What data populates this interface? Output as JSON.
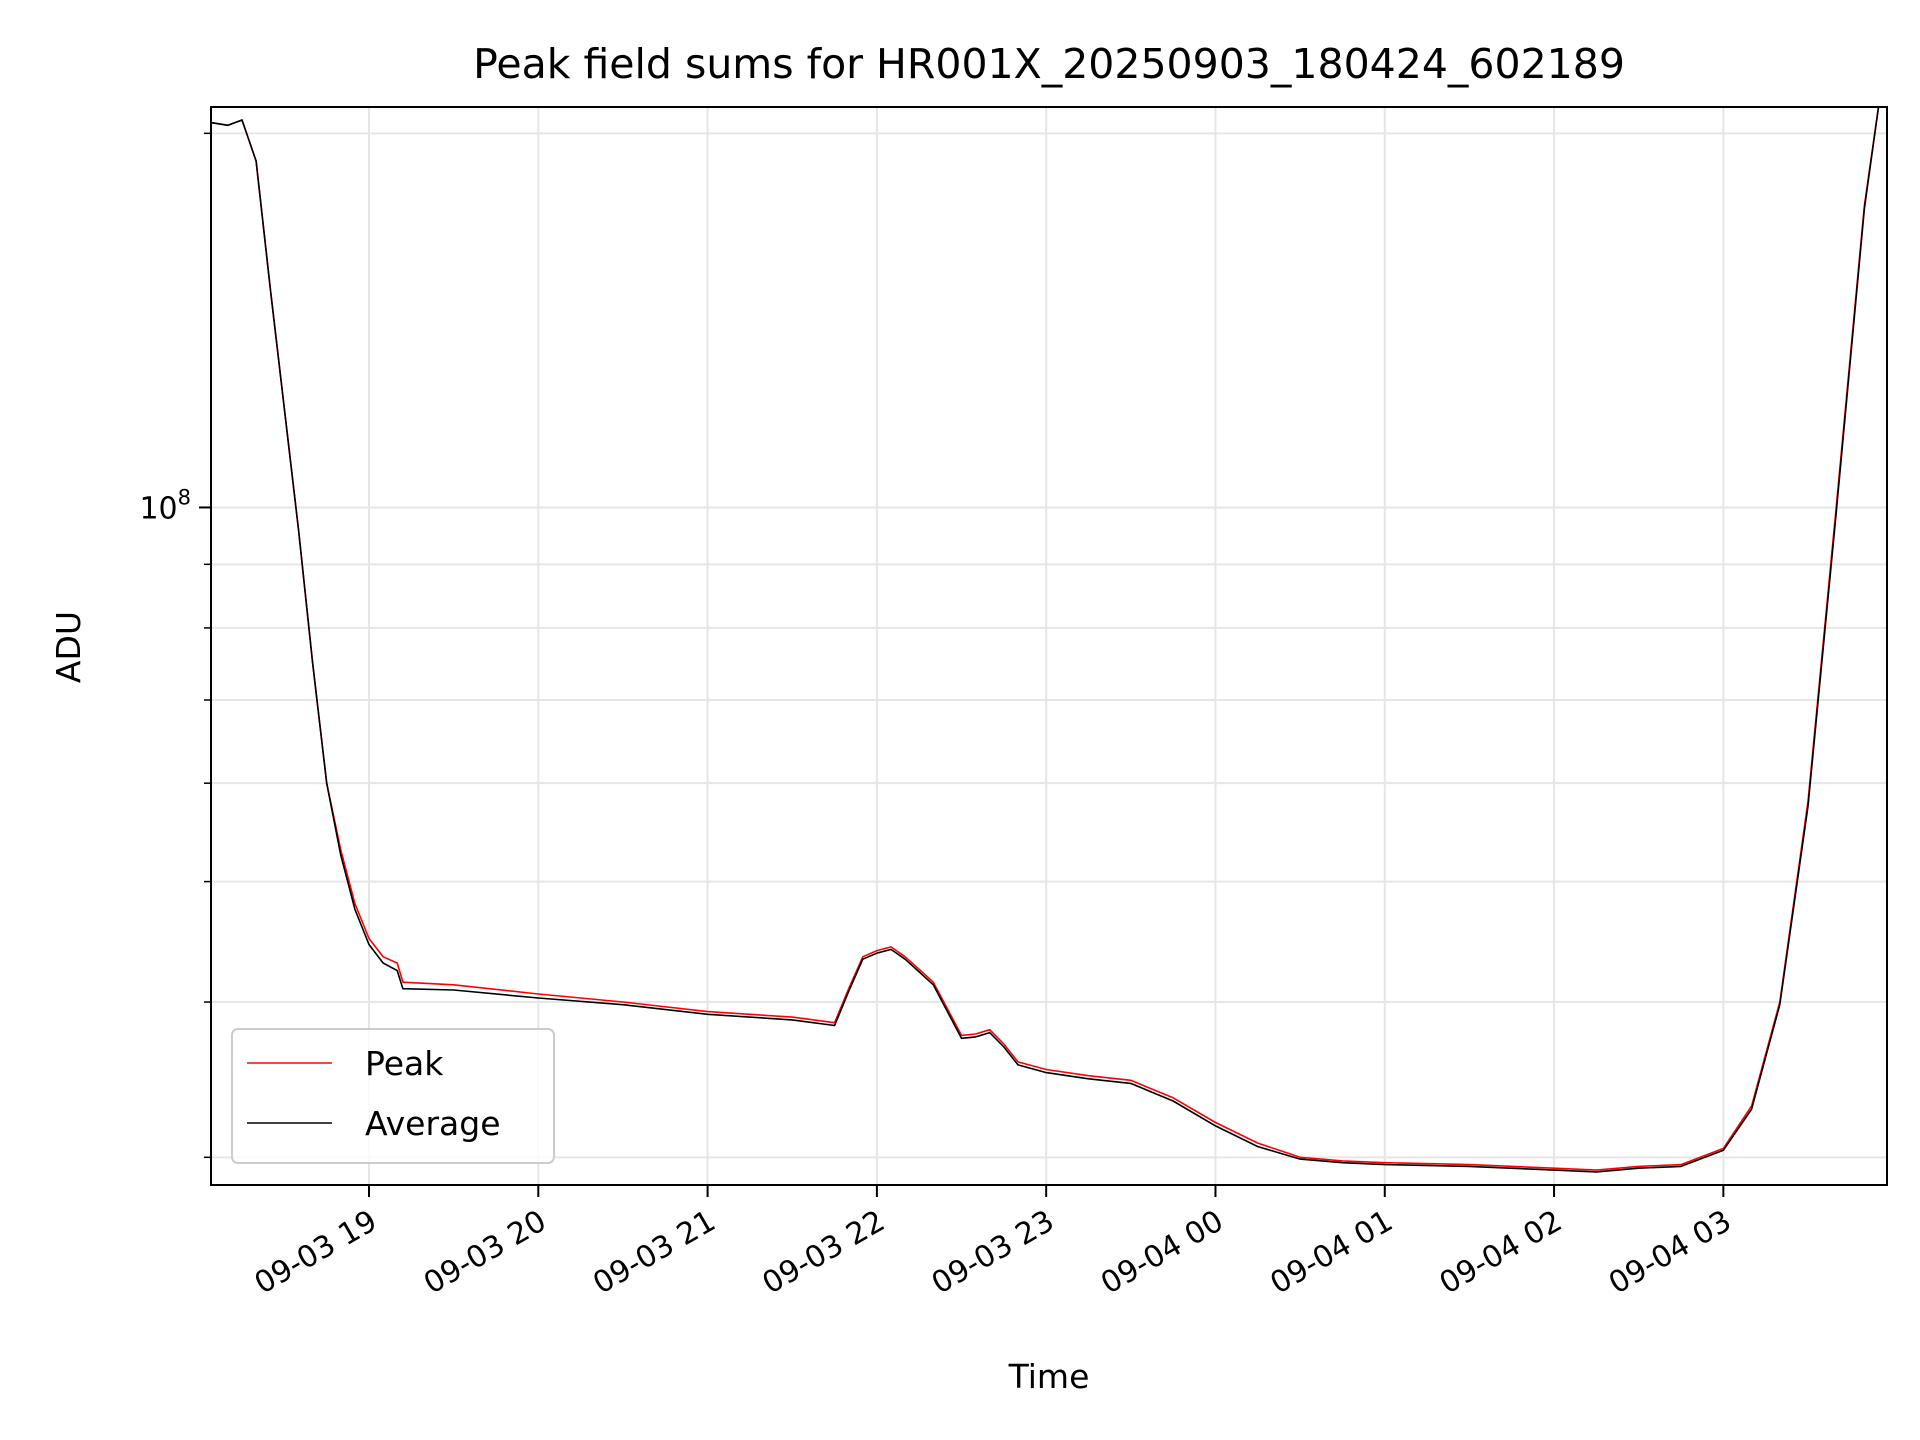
{
  "chart_data": {
    "type": "line",
    "title": "Peak field sums for HR001X_20250903_180424_602189",
    "xlabel": "Time",
    "ylabel": "ADU",
    "y_scale": "log",
    "xlim": [
      "2025-09-03 18:04",
      "2025-09-04 03:58"
    ],
    "ylim": [
      28500000,
      210000000
    ],
    "grid": true,
    "legend_position": "lower-left",
    "x_ticks": [
      {
        "t": "2025-09-03 19:00",
        "label": "09-03 19"
      },
      {
        "t": "2025-09-03 20:00",
        "label": "09-03 20"
      },
      {
        "t": "2025-09-03 21:00",
        "label": "09-03 21"
      },
      {
        "t": "2025-09-03 22:00",
        "label": "09-03 22"
      },
      {
        "t": "2025-09-03 23:00",
        "label": "09-03 23"
      },
      {
        "t": "2025-09-04 00:00",
        "label": "09-04 00"
      },
      {
        "t": "2025-09-04 01:00",
        "label": "09-04 01"
      },
      {
        "t": "2025-09-04 02:00",
        "label": "09-04 02"
      },
      {
        "t": "2025-09-04 03:00",
        "label": "09-04 03"
      }
    ],
    "y_major_ticks": [
      {
        "value": 100000000,
        "label_base": "10",
        "label_exp": "8"
      }
    ],
    "y_minor_ticks": [
      30000000,
      40000000,
      50000000,
      60000000,
      70000000,
      80000000,
      90000000,
      200000000
    ],
    "series": [
      {
        "name": "Peak",
        "color": "#ff0000",
        "points": [
          [
            "2025-09-03 18:04",
            204000000
          ],
          [
            "2025-09-03 18:10",
            203000000
          ],
          [
            "2025-09-03 18:15",
            205000000
          ],
          [
            "2025-09-03 18:20",
            190000000
          ],
          [
            "2025-09-03 18:25",
            150000000
          ],
          [
            "2025-09-03 18:30",
            120000000
          ],
          [
            "2025-09-03 18:35",
            96000000
          ],
          [
            "2025-09-03 18:40",
            75000000
          ],
          [
            "2025-09-03 18:45",
            60000000
          ],
          [
            "2025-09-03 18:50",
            53000000
          ],
          [
            "2025-09-03 18:55",
            48000000
          ],
          [
            "2025-09-03 19:00",
            45000000
          ],
          [
            "2025-09-03 19:05",
            43500000
          ],
          [
            "2025-09-03 19:10",
            43000000
          ],
          [
            "2025-09-03 19:12",
            41500000
          ],
          [
            "2025-09-03 19:30",
            41300000
          ],
          [
            "2025-09-03 20:00",
            40600000
          ],
          [
            "2025-09-03 20:30",
            40000000
          ],
          [
            "2025-09-03 21:00",
            39300000
          ],
          [
            "2025-09-03 21:30",
            38900000
          ],
          [
            "2025-09-03 21:45",
            38500000
          ],
          [
            "2025-09-03 21:50",
            41000000
          ],
          [
            "2025-09-03 21:55",
            43500000
          ],
          [
            "2025-09-03 22:00",
            44000000
          ],
          [
            "2025-09-03 22:05",
            44300000
          ],
          [
            "2025-09-03 22:10",
            43500000
          ],
          [
            "2025-09-03 22:15",
            42500000
          ],
          [
            "2025-09-03 22:20",
            41500000
          ],
          [
            "2025-09-03 22:25",
            39500000
          ],
          [
            "2025-09-03 22:30",
            37600000
          ],
          [
            "2025-09-03 22:35",
            37700000
          ],
          [
            "2025-09-03 22:40",
            38000000
          ],
          [
            "2025-09-03 22:45",
            37000000
          ],
          [
            "2025-09-03 22:50",
            35800000
          ],
          [
            "2025-09-03 23:00",
            35300000
          ],
          [
            "2025-09-03 23:15",
            34900000
          ],
          [
            "2025-09-03 23:30",
            34600000
          ],
          [
            "2025-09-03 23:45",
            33500000
          ],
          [
            "2025-09-04 00:00",
            32000000
          ],
          [
            "2025-09-04 00:15",
            30800000
          ],
          [
            "2025-09-04 00:30",
            30000000
          ],
          [
            "2025-09-04 00:45",
            29800000
          ],
          [
            "2025-09-04 01:00",
            29700000
          ],
          [
            "2025-09-04 01:30",
            29600000
          ],
          [
            "2025-09-04 02:00",
            29400000
          ],
          [
            "2025-09-04 02:15",
            29300000
          ],
          [
            "2025-09-04 02:30",
            29500000
          ],
          [
            "2025-09-04 02:45",
            29600000
          ],
          [
            "2025-09-04 03:00",
            30500000
          ],
          [
            "2025-09-04 03:10",
            33000000
          ],
          [
            "2025-09-04 03:20",
            40000000
          ],
          [
            "2025-09-04 03:30",
            58000000
          ],
          [
            "2025-09-04 03:40",
            100000000
          ],
          [
            "2025-09-04 03:50",
            175000000
          ],
          [
            "2025-09-04 03:55",
            210000000
          ]
        ]
      },
      {
        "name": "Average",
        "color": "#000000",
        "points": [
          [
            "2025-09-03 18:04",
            204000000
          ],
          [
            "2025-09-03 18:10",
            203000000
          ],
          [
            "2025-09-03 18:15",
            205000000
          ],
          [
            "2025-09-03 18:20",
            190000000
          ],
          [
            "2025-09-03 18:25",
            150000000
          ],
          [
            "2025-09-03 18:30",
            120000000
          ],
          [
            "2025-09-03 18:35",
            96000000
          ],
          [
            "2025-09-03 18:40",
            75000000
          ],
          [
            "2025-09-03 18:45",
            60000000
          ],
          [
            "2025-09-03 18:50",
            52500000
          ],
          [
            "2025-09-03 18:55",
            47500000
          ],
          [
            "2025-09-03 19:00",
            44500000
          ],
          [
            "2025-09-03 19:05",
            43000000
          ],
          [
            "2025-09-03 19:10",
            42400000
          ],
          [
            "2025-09-03 19:12",
            41000000
          ],
          [
            "2025-09-03 19:30",
            40900000
          ],
          [
            "2025-09-03 20:00",
            40300000
          ],
          [
            "2025-09-03 20:30",
            39800000
          ],
          [
            "2025-09-03 21:00",
            39100000
          ],
          [
            "2025-09-03 21:30",
            38700000
          ],
          [
            "2025-09-03 21:45",
            38300000
          ],
          [
            "2025-09-03 21:50",
            40800000
          ],
          [
            "2025-09-03 21:55",
            43300000
          ],
          [
            "2025-09-03 22:00",
            43800000
          ],
          [
            "2025-09-03 22:05",
            44100000
          ],
          [
            "2025-09-03 22:10",
            43300000
          ],
          [
            "2025-09-03 22:15",
            42300000
          ],
          [
            "2025-09-03 22:20",
            41300000
          ],
          [
            "2025-09-03 22:25",
            39300000
          ],
          [
            "2025-09-03 22:30",
            37400000
          ],
          [
            "2025-09-03 22:35",
            37500000
          ],
          [
            "2025-09-03 22:40",
            37800000
          ],
          [
            "2025-09-03 22:45",
            36800000
          ],
          [
            "2025-09-03 22:50",
            35600000
          ],
          [
            "2025-09-03 23:00",
            35100000
          ],
          [
            "2025-09-03 23:15",
            34700000
          ],
          [
            "2025-09-03 23:30",
            34400000
          ],
          [
            "2025-09-03 23:45",
            33300000
          ],
          [
            "2025-09-04 00:00",
            31800000
          ],
          [
            "2025-09-04 00:15",
            30600000
          ],
          [
            "2025-09-04 00:30",
            29900000
          ],
          [
            "2025-09-04 00:45",
            29700000
          ],
          [
            "2025-09-04 01:00",
            29600000
          ],
          [
            "2025-09-04 01:30",
            29500000
          ],
          [
            "2025-09-04 02:00",
            29300000
          ],
          [
            "2025-09-04 02:15",
            29200000
          ],
          [
            "2025-09-04 02:30",
            29400000
          ],
          [
            "2025-09-04 02:45",
            29500000
          ],
          [
            "2025-09-04 03:00",
            30400000
          ],
          [
            "2025-09-04 03:10",
            32800000
          ],
          [
            "2025-09-04 03:20",
            39800000
          ],
          [
            "2025-09-04 03:30",
            57500000
          ],
          [
            "2025-09-04 03:40",
            99000000
          ],
          [
            "2025-09-04 03:50",
            174000000
          ],
          [
            "2025-09-04 03:55",
            210000000
          ]
        ]
      }
    ]
  }
}
